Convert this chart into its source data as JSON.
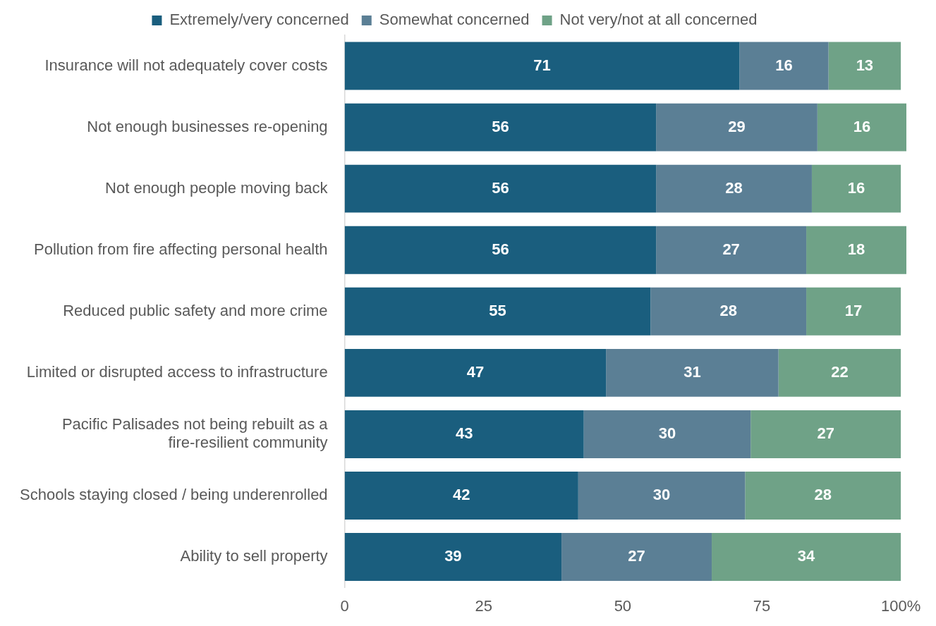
{
  "chart_data": {
    "type": "bar",
    "orientation": "horizontal",
    "stacked": true,
    "data_labels": true,
    "grid": false,
    "legend": "top",
    "categories": [
      "Insurance will not adequately cover costs",
      "Not enough businesses re-opening",
      "Not enough people moving back",
      "Pollution from fire affecting personal health",
      "Reduced public safety and more crime",
      "Limited or disrupted access to infrastructure",
      "Pacific Palisades not being rebuilt as a fire-resilient community",
      "Schools staying closed / being underenrolled",
      "Ability to sell property"
    ],
    "series": [
      {
        "name": "Extremely/very concerned",
        "color": "#1a5e7e",
        "values": [
          71,
          56,
          56,
          56,
          55,
          47,
          43,
          42,
          39
        ]
      },
      {
        "name": "Somewhat concerned",
        "color": "#5b7f95",
        "values": [
          16,
          29,
          28,
          27,
          28,
          31,
          30,
          30,
          27
        ]
      },
      {
        "name": "Not very/not at all concerned",
        "color": "#6fa287",
        "values": [
          13,
          16,
          16,
          18,
          17,
          22,
          27,
          28,
          34
        ]
      }
    ],
    "xlim": [
      0,
      101
    ],
    "xticks": [
      0,
      25,
      50,
      75,
      {
        "value": 100,
        "label": "100%"
      }
    ]
  }
}
